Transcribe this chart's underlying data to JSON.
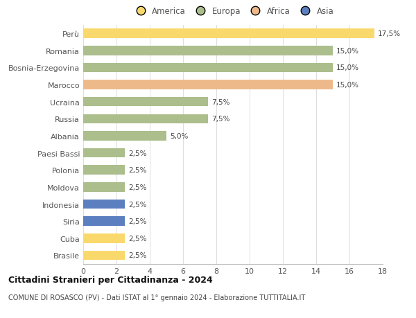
{
  "title": "Cittadini Stranieri per Cittadinanza - 2024",
  "subtitle": "COMUNE DI ROSASCO (PV) - Dati ISTAT al 1° gennaio 2024 - Elaborazione TUTTITALIA.IT",
  "countries": [
    "Brasile",
    "Cuba",
    "Siria",
    "Indonesia",
    "Moldova",
    "Polonia",
    "Paesi Bassi",
    "Albania",
    "Russia",
    "Ucraina",
    "Marocco",
    "Bosnia-Erzegovina",
    "Romania",
    "Perù"
  ],
  "values": [
    2.5,
    2.5,
    2.5,
    2.5,
    2.5,
    2.5,
    2.5,
    5.0,
    7.5,
    7.5,
    15.0,
    15.0,
    15.0,
    17.5
  ],
  "continents": [
    "America",
    "America",
    "Asia",
    "Asia",
    "Europa",
    "Europa",
    "Europa",
    "Europa",
    "Europa",
    "Europa",
    "Africa",
    "Europa",
    "Europa",
    "America"
  ],
  "colors": {
    "America": "#F9D96B",
    "Europa": "#ABBE8B",
    "Africa": "#EEB98A",
    "Asia": "#5B7FBF"
  },
  "xlim": [
    0,
    18
  ],
  "xticks": [
    0,
    2,
    4,
    6,
    8,
    10,
    12,
    14,
    16,
    18
  ],
  "bar_height": 0.55,
  "background_color": "#ffffff",
  "grid_color": "#dddddd",
  "label_format": {
    "2.5": "2,5%",
    "5.0": "5,0%",
    "7.5": "7,5%",
    "15.0": "15,0%",
    "17.5": "17,5%"
  },
  "legend_order": [
    "America",
    "Europa",
    "Africa",
    "Asia"
  ]
}
